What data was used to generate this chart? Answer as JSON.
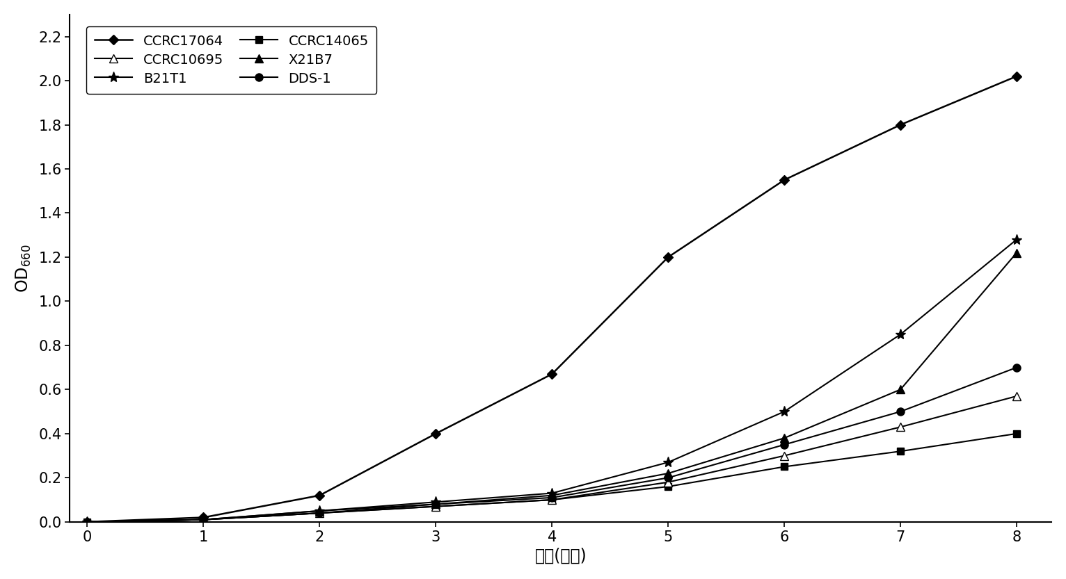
{
  "x": [
    0,
    1,
    2,
    3,
    4,
    5,
    6,
    7,
    8
  ],
  "series": [
    {
      "label": "CCRC17064",
      "marker": "D",
      "markersize": 7,
      "color": "#000000",
      "linewidth": 1.8,
      "markerfacecolor": "#000000",
      "values": [
        0.0,
        0.02,
        0.12,
        0.4,
        0.67,
        1.2,
        1.55,
        1.8,
        2.02
      ]
    },
    {
      "label": "CCRC14065",
      "marker": "s",
      "markersize": 7,
      "color": "#000000",
      "linewidth": 1.5,
      "markerfacecolor": "#000000",
      "values": [
        0.0,
        0.01,
        0.04,
        0.07,
        0.1,
        0.16,
        0.25,
        0.32,
        0.4
      ]
    },
    {
      "label": "CCRC10695",
      "marker": "^",
      "markersize": 8,
      "color": "#000000",
      "linewidth": 1.5,
      "markerfacecolor": "white",
      "values": [
        0.0,
        0.01,
        0.04,
        0.07,
        0.1,
        0.18,
        0.3,
        0.43,
        0.57
      ]
    },
    {
      "label": "X21B7",
      "marker": "^",
      "markersize": 8,
      "color": "#000000",
      "linewidth": 1.5,
      "markerfacecolor": "#000000",
      "values": [
        0.0,
        0.01,
        0.05,
        0.08,
        0.12,
        0.22,
        0.38,
        0.6,
        1.22
      ]
    },
    {
      "label": "B21T1",
      "marker": "*",
      "markersize": 11,
      "color": "#000000",
      "linewidth": 1.5,
      "markerfacecolor": "#000000",
      "values": [
        0.0,
        0.01,
        0.05,
        0.09,
        0.13,
        0.27,
        0.5,
        0.85,
        1.28
      ]
    },
    {
      "label": "DDS-1",
      "marker": "o",
      "markersize": 8,
      "color": "#000000",
      "linewidth": 1.5,
      "markerfacecolor": "#000000",
      "values": [
        0.0,
        0.01,
        0.04,
        0.08,
        0.11,
        0.2,
        0.35,
        0.5,
        0.7
      ]
    }
  ],
  "xlabel": "时间(小时)",
  "xlim": [
    -0.15,
    8.3
  ],
  "ylim": [
    0.0,
    2.3
  ],
  "yticks": [
    0.0,
    0.2,
    0.4,
    0.6,
    0.8,
    1.0,
    1.2,
    1.4,
    1.6,
    1.8,
    2.0,
    2.2
  ],
  "xticks": [
    0,
    1,
    2,
    3,
    4,
    5,
    6,
    7,
    8
  ],
  "background_color": "#ffffff",
  "figsize": [
    15.32,
    8.33
  ],
  "dpi": 100,
  "legend_order": [
    0,
    2,
    4,
    1,
    3,
    5
  ]
}
